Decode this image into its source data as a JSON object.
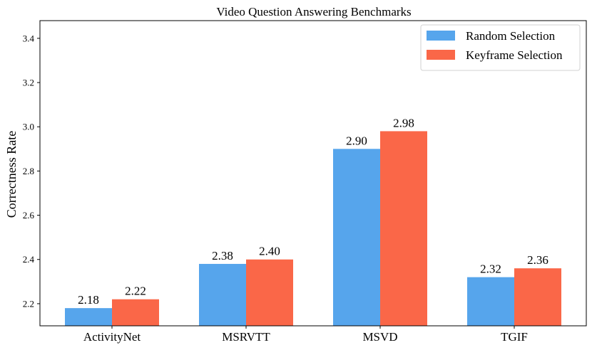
{
  "chart_data": {
    "type": "bar",
    "title": "Video Question Answering Benchmarks",
    "xlabel": "",
    "ylabel": "Correctness Rate",
    "categories": [
      "ActivityNet",
      "MSRVTT",
      "MSVD",
      "TGIF"
    ],
    "series": [
      {
        "name": "Random Selection",
        "color": "#56a5ec",
        "values": [
          2.18,
          2.38,
          2.9,
          2.32
        ],
        "labels": [
          "2.18",
          "2.38",
          "2.90",
          "2.32"
        ]
      },
      {
        "name": "Keyframe Selection",
        "color": "#fa6748",
        "values": [
          2.22,
          2.4,
          2.98,
          2.36
        ],
        "labels": [
          "2.22",
          "2.40",
          "2.98",
          "2.36"
        ]
      }
    ],
    "ylim": [
      2.1,
      3.48
    ],
    "yticks": [
      "2.2",
      "2.4",
      "2.6",
      "2.8",
      "3.0",
      "3.2",
      "3.4"
    ],
    "grid": false,
    "legend_position": "top-right"
  }
}
